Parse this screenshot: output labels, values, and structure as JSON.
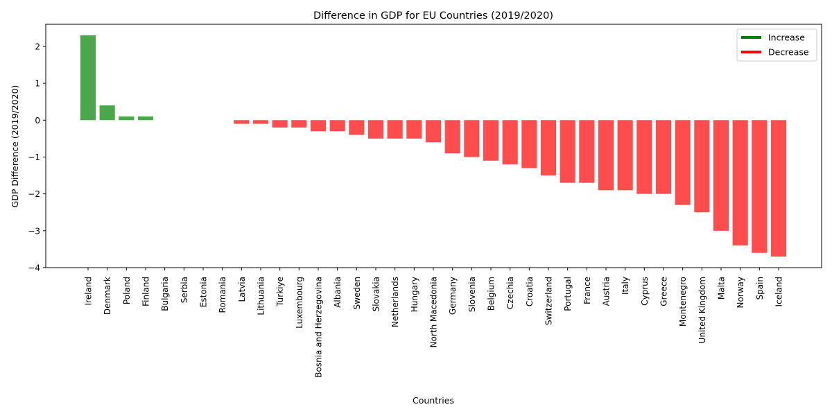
{
  "chart_data": {
    "type": "bar",
    "title": "Difference in GDP for EU Countries (2019/2020)",
    "xlabel": "Countries",
    "ylabel": "GDP Difference (2019/2020)",
    "ylim": [
      -4,
      2.6
    ],
    "yticks": [
      2,
      1,
      0,
      -1,
      -2,
      -3,
      -4
    ],
    "categories": [
      "Ireland",
      "Denmark",
      "Poland",
      "Finland",
      "Bulgaria",
      "Serbia",
      "Estonia",
      "Romania",
      "Latvia",
      "Lithuania",
      "Turkiye",
      "Luxembourg",
      "Bosnia and Herzegovina",
      "Albania",
      "Sweden",
      "Slovakia",
      "Netherlands",
      "Hungary",
      "North Macedonia",
      "Germany",
      "Slovenia",
      "Belgium",
      "Czechia",
      "Croatia",
      "Switzerland",
      "Portugal",
      "France",
      "Austria",
      "Italy",
      "Cyprus",
      "Greece",
      "Montenegro",
      "United Kingdom",
      "Malta",
      "Norway",
      "Spain",
      "Iceland"
    ],
    "values": [
      2.3,
      0.4,
      0.1,
      0.1,
      0,
      0,
      0,
      0,
      -0.1,
      -0.1,
      -0.2,
      -0.2,
      -0.3,
      -0.3,
      -0.4,
      -0.5,
      -0.5,
      -0.5,
      -0.6,
      -0.9,
      -1.0,
      -1.1,
      -1.2,
      -1.3,
      -1.5,
      -1.7,
      -1.7,
      -1.9,
      -1.9,
      -2.0,
      -2.0,
      -2.3,
      -2.5,
      -3.0,
      -3.4,
      -3.6,
      -3.7
    ],
    "colors": {
      "increase": "#4ca64c",
      "decrease": "#ff4c4c"
    },
    "legend": {
      "position": "top-right",
      "entries": [
        {
          "label": "Increase",
          "color": "#008000"
        },
        {
          "label": "Decrease",
          "color": "#ff0000"
        }
      ]
    },
    "grid": false
  }
}
